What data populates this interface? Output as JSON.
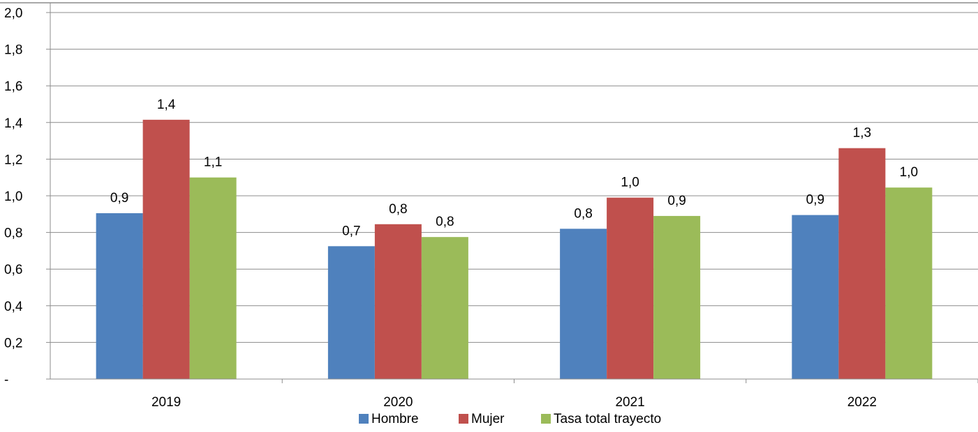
{
  "chart_data": {
    "type": "bar",
    "categories": [
      "2019",
      "2020",
      "2021",
      "2022"
    ],
    "series": [
      {
        "name": "Hombre",
        "color": "#4F81BD",
        "values": [
          0.905,
          0.725,
          0.82,
          0.895
        ],
        "labels": [
          "0,9",
          "0,7",
          "0,8",
          "0,9"
        ]
      },
      {
        "name": "Mujer",
        "color": "#C0504D",
        "values": [
          1.415,
          0.845,
          0.99,
          1.26
        ],
        "labels": [
          "1,4",
          "0,8",
          "1,0",
          "1,3"
        ]
      },
      {
        "name": "Tasa total trayecto",
        "color": "#9BBB59",
        "values": [
          1.1,
          0.775,
          0.89,
          1.045
        ],
        "labels": [
          "1,1",
          "0,8",
          "0,9",
          "1,0"
        ]
      }
    ],
    "ylim": [
      0,
      2.0
    ],
    "yticks": [
      0,
      0.2,
      0.4,
      0.6,
      0.8,
      1.0,
      1.2,
      1.4,
      1.6,
      1.8,
      2.0
    ],
    "ytick_labels": [
      "-",
      "0,2",
      "0,4",
      "0,6",
      "0,8",
      "1,0",
      "1,2",
      "1,4",
      "1,6",
      "1,8",
      "2,0"
    ],
    "grid": true,
    "legend_position": "bottom",
    "title": "",
    "xlabel": "",
    "ylabel": ""
  }
}
